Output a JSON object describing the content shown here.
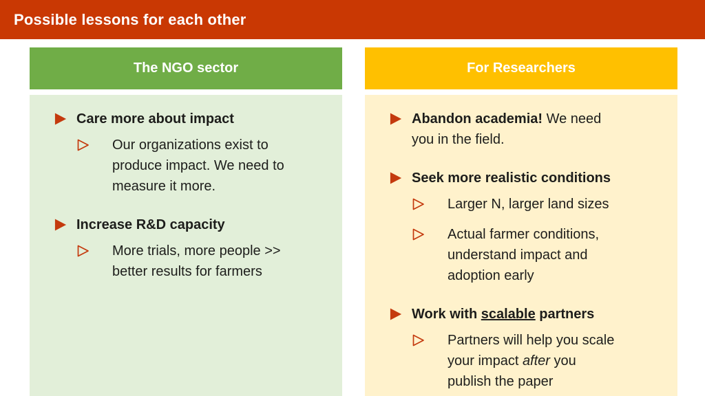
{
  "title": "Possible lessons for each other",
  "colors": {
    "title_bar_bg": "#C93803",
    "title_text": "#FFFFFF",
    "header_text": "#FFFFFF",
    "ngo_header_bg": "#70AD47",
    "ngo_body_bg": "#E2EFD9",
    "researchers_header_bg": "#FFC000",
    "researchers_body_bg": "#FFF2CC",
    "bullet": "#C43A0E",
    "body_text": "#1D1D1B"
  },
  "icons": {
    "level1_bullet": "filled-right-triangle-icon",
    "level2_bullet": "outline-right-triangle-icon"
  },
  "columns": [
    {
      "id": "ngo",
      "header": "The NGO sector",
      "items": [
        {
          "level": 1,
          "runs": [
            {
              "text": "Care more about impact",
              "bold": true
            }
          ]
        },
        {
          "level": 2,
          "runs": [
            {
              "text": "Our organizations exist to\nproduce impact. We need to\nmeasure it more."
            }
          ]
        },
        {
          "level": 1,
          "runs": [
            {
              "text": "Increase R&D capacity",
              "bold": true
            }
          ]
        },
        {
          "level": 2,
          "runs": [
            {
              "text": "More trials, more people >>\nbetter results for farmers"
            }
          ]
        }
      ]
    },
    {
      "id": "researchers",
      "header": "For Researchers",
      "items": [
        {
          "level": 1,
          "runs": [
            {
              "text": "Abandon academia!",
              "bold": true
            },
            {
              "text": " We need\nyou in the field."
            }
          ]
        },
        {
          "level": 1,
          "runs": [
            {
              "text": "Seek more realistic conditions",
              "bold": true
            }
          ]
        },
        {
          "level": 2,
          "runs": [
            {
              "text": "Larger N, larger land sizes"
            }
          ]
        },
        {
          "level": 2,
          "runs": [
            {
              "text": "Actual farmer conditions,\nunderstand impact and\nadoption early"
            }
          ]
        },
        {
          "level": 1,
          "runs": [
            {
              "text": "Work with ",
              "bold": true
            },
            {
              "text": "scalable",
              "bold": true,
              "underline": true
            },
            {
              "text": " partners",
              "bold": true
            }
          ]
        },
        {
          "level": 2,
          "runs": [
            {
              "text": "Partners will help you scale\nyour impact "
            },
            {
              "text": "after",
              "italic": true
            },
            {
              "text": " you\npublish the paper"
            }
          ]
        }
      ]
    }
  ]
}
